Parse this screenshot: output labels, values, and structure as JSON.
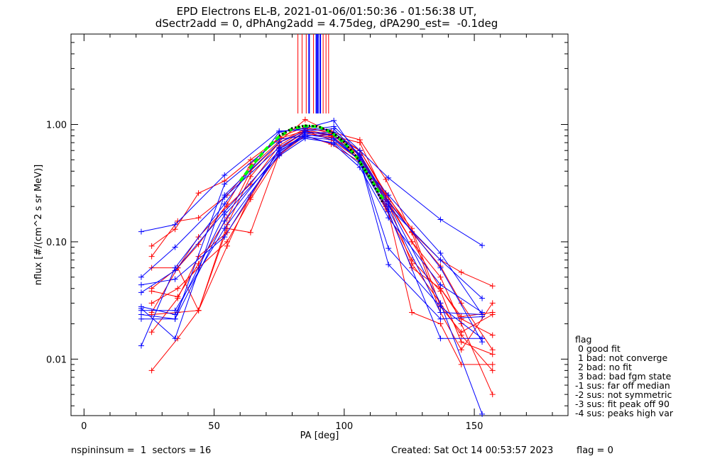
{
  "header": {
    "title_line1": "EPD Electrons EL-B, 2021-01-06/01:50:36 - 01:56:38 UT,",
    "title_line2": "dSectr2add = 0, dPhAng2add = 4.75deg, dPA290_est=  -0.1deg"
  },
  "footer": {
    "left": "nspininsum =  1  sectors = 16",
    "created": "Created: Sat Oct 14 00:53:57 2023",
    "flag": "flag = 0"
  },
  "legend": {
    "title": "flag",
    "items": [
      " 0 good fit",
      " 1 bad: not converge",
      " 2 bad: no fit",
      " 3 bad: bad fgm state",
      "-1 sus: far off median",
      "-2 sus: not symmetric",
      "-3 sus: fit peak off 90",
      "-4 sus: peaks high var"
    ]
  },
  "colors": {
    "red": "#ff0000",
    "blue": "#0000ff",
    "green": "#00ff00",
    "black": "#000000"
  },
  "chart_data": {
    "type": "line",
    "xlabel": "PA [deg]",
    "ylabel": "nflux [#/(cm^2 s sr MeV)]",
    "xlim": [
      -5,
      186
    ],
    "ylim": [
      0.0033,
      5.9
    ],
    "yscale": "log",
    "x_ticks": [
      0,
      50,
      100,
      150
    ],
    "x_tick_labels": [
      "0",
      "50",
      "100",
      "150"
    ],
    "y_ticks": [
      0.01,
      0.1,
      1.0
    ],
    "y_tick_labels": [
      "0.01",
      "0.10",
      "1.00"
    ],
    "vertical_lines": [
      {
        "x": 82.2,
        "color": "red"
      },
      {
        "x": 83.8,
        "color": "red"
      },
      {
        "x": 85.4,
        "color": "red"
      },
      {
        "x": 86.5,
        "color": "blue"
      },
      {
        "x": 88.2,
        "color": "red"
      },
      {
        "x": 89.3,
        "color": "blue"
      },
      {
        "x": 89.9,
        "color": "blue"
      },
      {
        "x": 90.8,
        "color": "blue"
      },
      {
        "x": 91.9,
        "color": "red"
      },
      {
        "x": 93.0,
        "color": "red"
      },
      {
        "x": 94.0,
        "color": "red"
      }
    ],
    "series": [
      {
        "color": "red",
        "x": [
          26,
          35,
          44,
          54,
          64,
          75,
          85,
          95,
          106,
          116,
          126,
          137,
          145,
          157
        ],
        "y": [
          0.092,
          0.128,
          0.26,
          0.33,
          0.5,
          0.76,
          0.88,
          0.8,
          0.52,
          0.24,
          0.122,
          0.07,
          0.055,
          0.042
        ]
      },
      {
        "color": "red",
        "x": [
          26,
          36,
          44,
          55,
          64,
          75,
          85,
          95,
          106,
          116,
          126,
          137,
          145,
          157
        ],
        "y": [
          0.008,
          0.015,
          0.026,
          0.092,
          0.25,
          0.62,
          0.86,
          0.82,
          0.56,
          0.24,
          0.1,
          0.05,
          0.02,
          0.005
        ]
      },
      {
        "color": "red",
        "x": [
          26,
          36,
          44,
          55,
          64,
          75,
          85,
          95,
          106,
          116,
          126,
          137,
          145,
          157
        ],
        "y": [
          0.025,
          0.06,
          0.11,
          0.2,
          0.31,
          0.66,
          0.9,
          0.82,
          0.6,
          0.26,
          0.12,
          0.062,
          0.03,
          0.012
        ]
      },
      {
        "color": "red",
        "x": [
          26,
          36,
          44,
          55,
          64,
          75,
          85,
          95,
          106,
          116,
          126,
          137,
          145,
          157
        ],
        "y": [
          0.038,
          0.034,
          0.065,
          0.16,
          0.4,
          0.7,
          0.88,
          0.74,
          0.5,
          0.2,
          0.06,
          0.04,
          0.022,
          0.016
        ]
      },
      {
        "color": "red",
        "x": [
          26,
          36,
          44,
          55,
          64,
          75,
          85,
          95,
          106,
          116,
          126,
          137,
          145,
          157
        ],
        "y": [
          0.04,
          0.06,
          0.095,
          0.21,
          0.46,
          0.78,
          0.95,
          0.84,
          0.55,
          0.23,
          0.1,
          0.04,
          0.023,
          0.025
        ]
      },
      {
        "color": "red",
        "x": [
          26,
          36,
          44,
          55,
          64,
          75,
          85,
          95,
          106,
          116,
          126,
          137,
          145,
          157
        ],
        "y": [
          0.024,
          0.025,
          0.026,
          0.13,
          0.12,
          0.56,
          0.84,
          0.78,
          0.55,
          0.22,
          0.025,
          0.02,
          0.009,
          0.009
        ]
      },
      {
        "color": "red",
        "x": [
          26,
          36,
          44,
          55,
          64,
          75,
          85,
          95,
          106,
          116,
          126,
          137,
          145,
          157
        ],
        "y": [
          0.017,
          0.033,
          0.075,
          0.12,
          0.24,
          0.62,
          0.88,
          0.8,
          0.7,
          0.24,
          0.065,
          0.03,
          0.016,
          0.008
        ]
      },
      {
        "color": "red",
        "x": [
          26,
          36,
          44,
          55,
          64,
          75,
          85,
          95,
          106,
          116,
          126,
          137,
          145,
          157
        ],
        "y": [
          0.075,
          0.15,
          0.16,
          0.25,
          0.43,
          0.72,
          1.1,
          0.86,
          0.74,
          0.34,
          0.12,
          0.025,
          0.012,
          0.03
        ]
      },
      {
        "color": "red",
        "x": [
          26,
          36,
          44,
          55,
          64,
          75,
          85,
          95,
          106,
          116,
          126,
          137,
          145,
          157
        ],
        "y": [
          0.03,
          0.04,
          0.06,
          0.1,
          0.23,
          0.55,
          0.8,
          0.68,
          0.48,
          0.19,
          0.07,
          0.038,
          0.014,
          0.011
        ]
      },
      {
        "color": "red",
        "x": [
          26,
          36,
          44,
          55,
          64,
          75,
          85,
          95,
          106,
          116,
          126,
          137,
          145,
          157
        ],
        "y": [
          0.06,
          0.06,
          0.026,
          0.14,
          0.36,
          0.7,
          0.92,
          0.88,
          0.6,
          0.25,
          0.13,
          0.028,
          0.017,
          0.024
        ]
      },
      {
        "color": "blue",
        "x": [
          22,
          35,
          54,
          75,
          85,
          96,
          106,
          117,
          137,
          153
        ],
        "y": [
          0.122,
          0.14,
          0.37,
          0.88,
          0.9,
          0.96,
          0.6,
          0.35,
          0.155,
          0.093
        ]
      },
      {
        "color": "blue",
        "x": [
          22,
          35,
          54,
          75,
          85,
          96,
          106,
          117,
          137,
          153
        ],
        "y": [
          0.013,
          0.06,
          0.21,
          0.86,
          0.93,
          1.08,
          0.52,
          0.2,
          0.07,
          0.033
        ]
      },
      {
        "color": "blue",
        "x": [
          22,
          35,
          54,
          75,
          85,
          96,
          106,
          117,
          137,
          153
        ],
        "y": [
          0.026,
          0.026,
          0.13,
          0.56,
          0.82,
          0.76,
          0.5,
          0.088,
          0.028,
          0.015
        ]
      },
      {
        "color": "blue",
        "x": [
          22,
          35,
          54,
          75,
          85,
          96,
          106,
          117,
          137,
          153
        ],
        "y": [
          0.05,
          0.09,
          0.24,
          0.64,
          0.86,
          0.82,
          0.48,
          0.25,
          0.08,
          0.024
        ]
      },
      {
        "color": "blue",
        "x": [
          22,
          35,
          54,
          75,
          85,
          96,
          106,
          117,
          137,
          153
        ],
        "y": [
          0.037,
          0.057,
          0.18,
          0.6,
          0.78,
          0.74,
          0.5,
          0.064,
          0.022,
          0.023
        ]
      },
      {
        "color": "blue",
        "x": [
          22,
          35,
          54,
          75,
          85,
          96,
          106,
          117,
          137,
          153
        ],
        "y": [
          0.028,
          0.024,
          0.17,
          0.54,
          0.76,
          0.7,
          0.46,
          0.18,
          0.015,
          0.015
        ]
      },
      {
        "color": "blue",
        "x": [
          22,
          35,
          54,
          75,
          85,
          96,
          106,
          117,
          137,
          153
        ],
        "y": [
          0.043,
          0.048,
          0.11,
          0.62,
          0.8,
          0.68,
          0.43,
          0.16,
          0.043,
          0.025
        ]
      },
      {
        "color": "blue",
        "x": [
          22,
          35,
          54,
          75,
          85,
          96,
          106,
          117,
          137,
          153
        ],
        "y": [
          0.027,
          0.015,
          0.25,
          0.7,
          0.88,
          0.92,
          0.54,
          0.21,
          0.03,
          0.0034
        ]
      },
      {
        "color": "blue",
        "x": [
          22,
          35,
          54,
          75,
          85,
          96,
          106,
          117,
          137,
          153
        ],
        "y": [
          0.024,
          0.022,
          0.15,
          0.58,
          0.84,
          0.86,
          0.56,
          0.22,
          0.06,
          0.014
        ]
      },
      {
        "color": "blue",
        "x": [
          22,
          35,
          54,
          75,
          85,
          96,
          106,
          117,
          137,
          153
        ],
        "y": [
          0.022,
          0.022,
          0.31,
          0.75,
          0.8,
          0.82,
          0.48,
          0.19,
          0.025,
          0.024
        ]
      }
    ],
    "fit_green": {
      "color": "green",
      "x": [
        60,
        65,
        70,
        75,
        80,
        85,
        90,
        95,
        100,
        105,
        110,
        115
      ],
      "y": [
        0.33,
        0.46,
        0.62,
        0.79,
        0.92,
        0.97,
        0.96,
        0.86,
        0.7,
        0.52,
        0.35,
        0.23
      ]
    },
    "fit_black": {
      "color": "black",
      "x": [
        75,
        80,
        85,
        90,
        95,
        100,
        105,
        110,
        115
      ],
      "y": [
        0.8,
        0.93,
        0.98,
        0.96,
        0.87,
        0.71,
        0.52,
        0.35,
        0.21
      ]
    }
  }
}
